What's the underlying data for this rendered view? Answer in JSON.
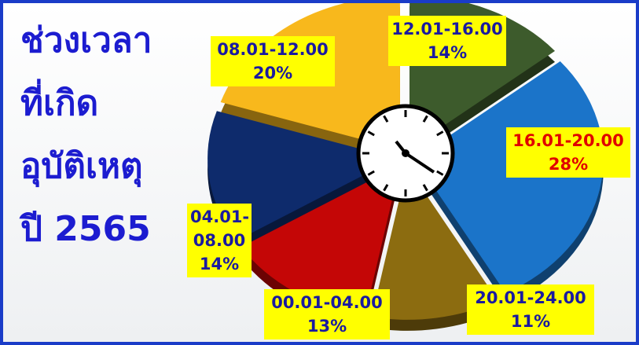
{
  "chart_data": {
    "type": "pie",
    "title": [
      "ช่วงเวลา",
      "ที่เกิด",
      "อุบัติเหตุ",
      "ปี 2565"
    ],
    "categories": [
      "12.01-16.00",
      "16.01-20.00",
      "20.01-24.00",
      "00.01-04.00",
      "04.01-08.00",
      "08.01-12.00"
    ],
    "values": [
      14,
      28,
      11,
      13,
      14,
      20
    ],
    "value_labels": [
      "14%",
      "28%",
      "11%",
      "13%",
      "14%",
      "20%"
    ],
    "colors": [
      "#3d5b2c",
      "#1b74c9",
      "#8c6c10",
      "#c40606",
      "#0e2b6c",
      "#f8b81c"
    ],
    "label_colors": [
      "#1a1aa0",
      "#e00000",
      "#1a1aa0",
      "#1a1aa0",
      "#1a1aa0",
      "#1a1aa0"
    ]
  }
}
